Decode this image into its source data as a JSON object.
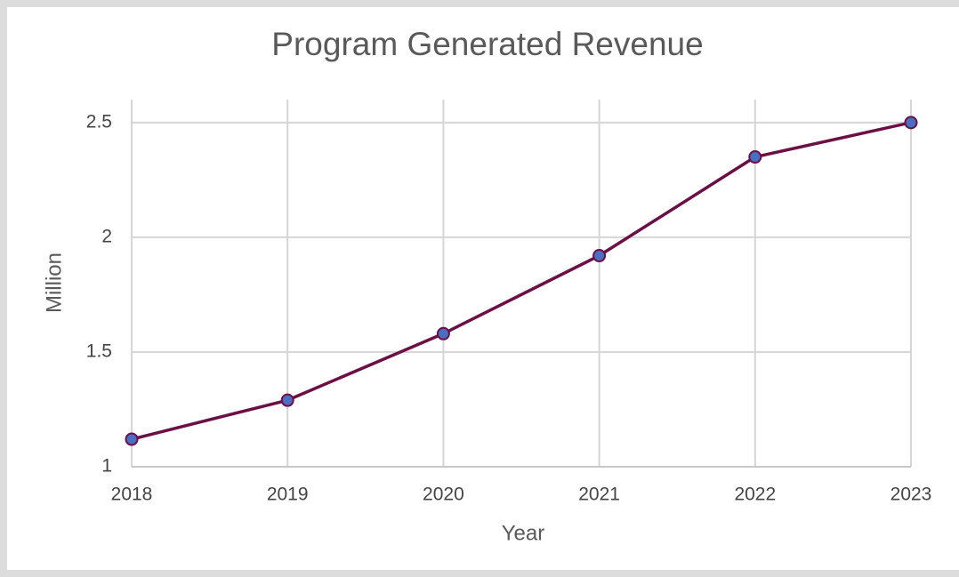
{
  "chart_data": {
    "type": "line",
    "title": "Program Generated Revenue",
    "x_label": "Year",
    "y_label": "Million",
    "x": [
      2018,
      2019,
      2020,
      2021,
      2022,
      2023
    ],
    "xlim": [
      2018,
      2023
    ],
    "xticks": [
      2018,
      2019,
      2020,
      2021,
      2022,
      2023
    ],
    "ylim": [
      1,
      2.6
    ],
    "yticks": [
      1,
      1.5,
      2,
      2.5
    ],
    "grid": true,
    "series": [
      {
        "name": "Revenue",
        "color": "#6b0f45",
        "marker_color": "#4a6fc2",
        "values": [
          1.12,
          1.29,
          1.58,
          1.92,
          2.35,
          2.5
        ]
      }
    ]
  }
}
